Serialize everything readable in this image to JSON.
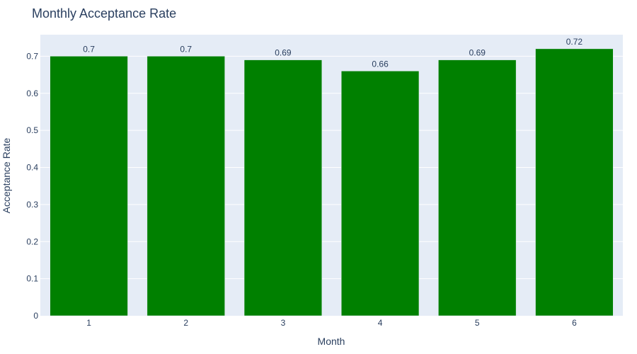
{
  "chart_data": {
    "type": "bar",
    "title": "Monthly Acceptance Rate",
    "xlabel": "Month",
    "ylabel": "Acceptance Rate",
    "categories": [
      "1",
      "2",
      "3",
      "4",
      "5",
      "6"
    ],
    "values": [
      0.7,
      0.7,
      0.69,
      0.66,
      0.69,
      0.72
    ],
    "data_labels": [
      "0.7",
      "0.7",
      "0.69",
      "0.66",
      "0.69",
      "0.72"
    ],
    "ylim": [
      0,
      0.758
    ],
    "yticks": [
      0,
      0.1,
      0.2,
      0.3,
      0.4,
      0.5,
      0.6,
      0.7
    ],
    "ytick_labels": [
      "0",
      "0.1",
      "0.2",
      "0.3",
      "0.4",
      "0.5",
      "0.6",
      "0.7"
    ],
    "grid": true,
    "legend": "none",
    "colors": {
      "bar": "#008000",
      "plot_background": "#e5ecf6",
      "grid": "#ffffff",
      "text": "#2a3f5f"
    }
  }
}
